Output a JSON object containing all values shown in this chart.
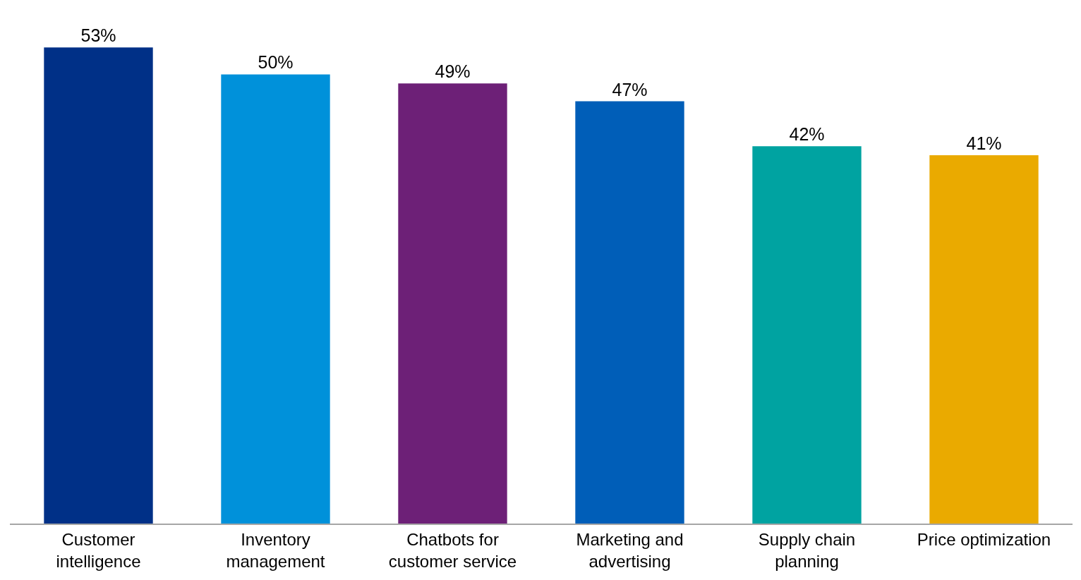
{
  "chart_data": {
    "type": "bar",
    "categories": [
      "Customer intelligence",
      "Inventory management",
      "Chatbots for customer service",
      "Marketing and advertising",
      "Supply chain planning",
      "Price optimization"
    ],
    "values": [
      53,
      50,
      49,
      47,
      42,
      41
    ],
    "value_labels": [
      "53%",
      "50%",
      "49%",
      "47%",
      "42%",
      "41%"
    ],
    "colors": [
      "#003087",
      "#0091da",
      "#6d2077",
      "#005eb8",
      "#00a3a1",
      "#eaaa00"
    ],
    "legend": false
  }
}
